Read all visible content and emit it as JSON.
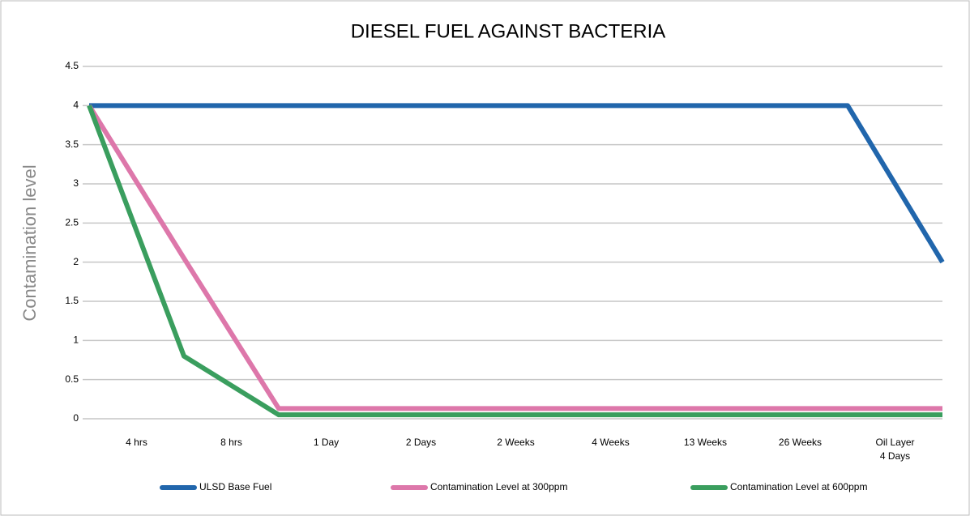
{
  "chart_data": {
    "type": "line",
    "title": "DIESEL FUEL AGAINST BACTERIA",
    "y_label": "Contamination level",
    "categories": [
      null,
      "4 hrs",
      "8 hrs",
      "1 Day",
      "2 Days",
      "2 Weeks",
      "4 Weeks",
      "13 Weeks",
      "26 Weeks",
      "Oil Layer\n4 Days"
    ],
    "series": [
      {
        "name": "ULSD Base Fuel",
        "color": "#2166ac",
        "values": [
          4,
          4,
          4,
          4,
          4,
          4,
          4,
          4,
          4,
          2
        ]
      },
      {
        "name": "Contamination Level at 300ppm",
        "color": "#dd77aa",
        "values": [
          4,
          2.05,
          0.13,
          0.13,
          0.13,
          0.13,
          0.13,
          0.13,
          0.13,
          0.13
        ]
      },
      {
        "name": "Contamination Level at 600ppm",
        "color": "#3a9e5e",
        "values": [
          4,
          0.8,
          0.05,
          0.05,
          0.05,
          0.05,
          0.05,
          0.05,
          0.05,
          0.05
        ]
      }
    ],
    "ylim": [
      0,
      4.5
    ],
    "yticks": [
      0,
      0.5,
      1,
      1.5,
      2,
      2.5,
      3,
      3.5,
      4,
      4.5
    ],
    "grid": true,
    "legend": "bottom"
  }
}
